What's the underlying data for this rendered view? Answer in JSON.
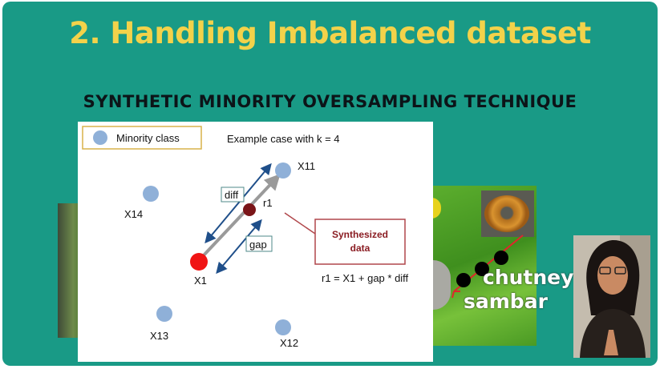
{
  "slide": {
    "title": "2. Handling Imbalanced dataset",
    "subtitle": "SYNTHETIC  MINORITY OVERSAMPLING TECHNIQUE"
  },
  "diagram": {
    "legend_label": "Minority class",
    "example_caption": "Example case with k = 4",
    "points": {
      "x11": "X11",
      "x14": "X14",
      "x1": "X1",
      "x13": "X13",
      "x12": "X12",
      "r1": "r1"
    },
    "diff_label": "diff",
    "gap_label": "gap",
    "synth_box_line1": "Synthesized",
    "synth_box_line2": "data",
    "formula": "r1 = X1 + gap * diff",
    "colors": {
      "minority": "#8fb0d8",
      "x1": "#f01414",
      "r1": "#7a1518",
      "arrow": "#1f4f8a",
      "synth_border": "#b0474b",
      "synth_text": "#8a1c22"
    }
  },
  "overlay": {
    "chutney": "chutney",
    "sambar": "sambar"
  },
  "theme": {
    "background": "#199a86",
    "title_color": "#f3d24a",
    "subtitle_color": "#0c1418"
  }
}
